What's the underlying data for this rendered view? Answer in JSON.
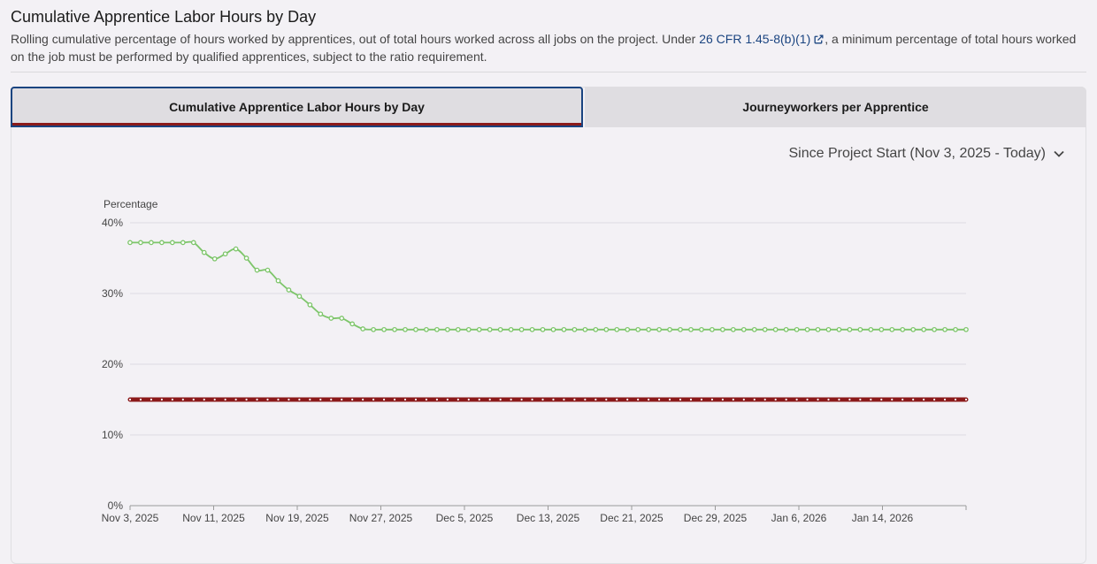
{
  "header": {
    "title": "Cumulative Apprentice Labor Hours by Day",
    "desc_before": "Rolling cumulative percentage of hours worked by apprentices, out of total hours worked across all jobs on the project. Under ",
    "link": "26 CFR 1.45-8(b)(1)",
    "desc_after": ", a minimum percentage of total hours worked on the job must be performed by qualified apprentices, subject to the ratio requirement."
  },
  "tabs": [
    {
      "label": "Cumulative Apprentice Labor Hours by Day",
      "active": true
    },
    {
      "label": "Journeyworkers per Apprentice",
      "active": false
    }
  ],
  "range_select": {
    "value": "Since Project Start (Nov 3, 2025 - Today)"
  },
  "colors": {
    "series": "#7dc56a",
    "requirement": "#8b1a1a",
    "accent": "#1a4480"
  },
  "chart_data": {
    "type": "line",
    "ylabel": "Percentage",
    "ylim": [
      0,
      40
    ],
    "y_ticks": [
      "0%",
      "10%",
      "20%",
      "30%",
      "40%"
    ],
    "x_ticks": [
      "Nov 3, 2025",
      "Nov 11, 2025",
      "Nov 19, 2025",
      "Nov 27, 2025",
      "Dec 5, 2025",
      "Dec 13, 2025",
      "Dec 21, 2025",
      "Dec 29, 2025",
      "Jan 6, 2026",
      "Jan 14, 2026"
    ],
    "x_range": [
      "2025-11-03",
      "2026-01-22"
    ],
    "grid": true,
    "series": [
      {
        "values": [
          37.2,
          37.2,
          37.2,
          37.2,
          37.2,
          37.2,
          37.2,
          35.8,
          34.9,
          35.6,
          36.3,
          35.0,
          33.3,
          33.3,
          31.8,
          30.5,
          29.6,
          28.4,
          27.1,
          26.5,
          26.5,
          25.7,
          25.0,
          24.9,
          24.9,
          24.9,
          24.9,
          24.9,
          24.9,
          24.9,
          24.9,
          24.9,
          24.9,
          24.9,
          24.9,
          24.9,
          24.9,
          24.9,
          24.9,
          24.9,
          24.9,
          24.9,
          24.9,
          24.9,
          24.9,
          24.9,
          24.9,
          24.9,
          24.9,
          24.9,
          24.9,
          24.9,
          24.9,
          24.9,
          24.9,
          24.9,
          24.9,
          24.9,
          24.9,
          24.9,
          24.9,
          24.9,
          24.9,
          24.9,
          24.9,
          24.9,
          24.9,
          24.9,
          24.9,
          24.9,
          24.9,
          24.9,
          24.9,
          24.9,
          24.9,
          24.9,
          24.9,
          24.9,
          24.9,
          24.9
        ]
      },
      {
        "values": [
          15,
          15,
          15,
          15,
          15,
          15,
          15,
          15,
          15,
          15,
          15,
          15,
          15,
          15,
          15,
          15,
          15,
          15,
          15,
          15,
          15,
          15,
          15,
          15,
          15,
          15,
          15,
          15,
          15,
          15,
          15,
          15,
          15,
          15,
          15,
          15,
          15,
          15,
          15,
          15,
          15,
          15,
          15,
          15,
          15,
          15,
          15,
          15,
          15,
          15,
          15,
          15,
          15,
          15,
          15,
          15,
          15,
          15,
          15,
          15,
          15,
          15,
          15,
          15,
          15,
          15,
          15,
          15,
          15,
          15,
          15,
          15,
          15,
          15,
          15,
          15,
          15,
          15,
          15,
          15
        ]
      }
    ]
  }
}
